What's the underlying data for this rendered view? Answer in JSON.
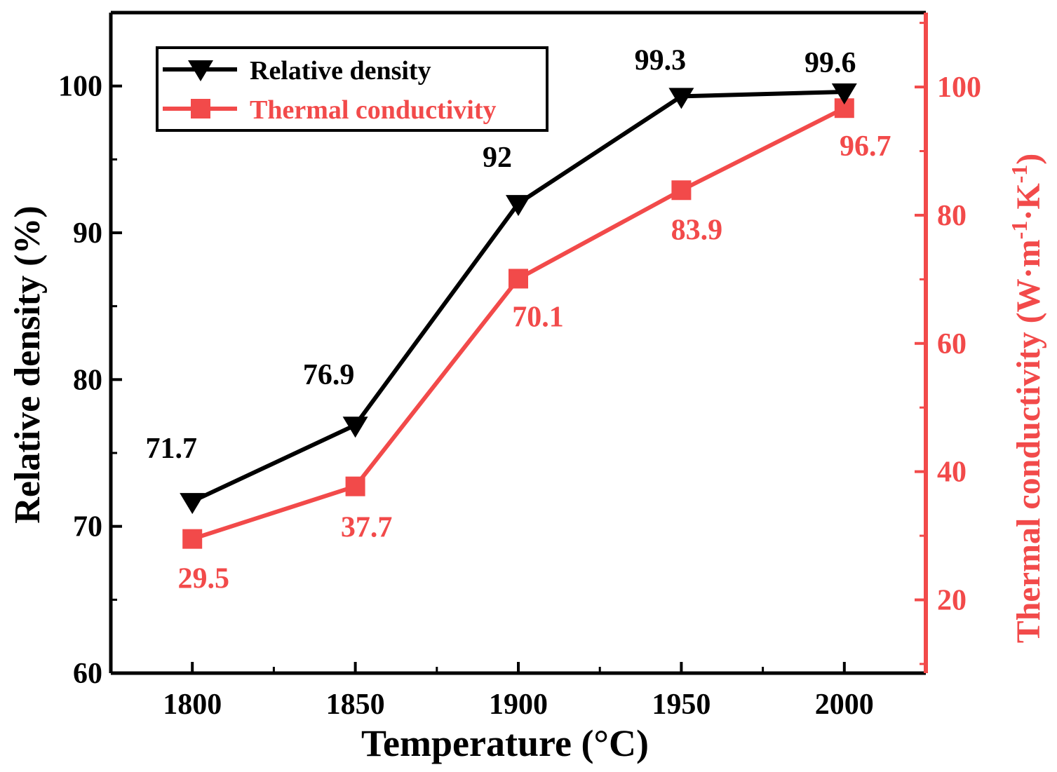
{
  "chart_data": {
    "type": "line",
    "x": [
      1800,
      1850,
      1900,
      1950,
      2000
    ],
    "xlabel": "Temperature (°C)",
    "xlim": [
      1775,
      2025
    ],
    "xticks": [
      "1800",
      "1850",
      "1900",
      "1950",
      "2000"
    ],
    "series": [
      {
        "name": "Relative density",
        "axis": "left",
        "marker": "triangle-down",
        "color": "#000000",
        "values": [
          71.7,
          76.9,
          92,
          99.3,
          99.6
        ],
        "labels": [
          "71.7",
          "76.9",
          "92",
          "99.3",
          "99.6"
        ]
      },
      {
        "name": "Thermal conductivity",
        "axis": "right",
        "marker": "square",
        "color": "#f24a4a",
        "values": [
          29.5,
          37.7,
          70.1,
          83.9,
          96.7
        ],
        "labels": [
          "29.5",
          "37.7",
          "70.1",
          "83.9",
          "96.7"
        ]
      }
    ],
    "y_left": {
      "label": "Relative density (%)",
      "lim": [
        60,
        105
      ],
      "ticks": [
        60,
        70,
        80,
        90,
        100
      ]
    },
    "y_right": {
      "label_main": "Thermal conductivity (W·m",
      "label_sup1": "-1",
      "label_mid": "·K",
      "label_sup2": "-1",
      "label_end": ")",
      "lim": [
        8.57,
        111.6
      ],
      "ticks": [
        20,
        40,
        60,
        80,
        100
      ]
    },
    "legend": {
      "position": "top-left",
      "entries": [
        "Relative density",
        "Thermal conductivity"
      ]
    }
  }
}
